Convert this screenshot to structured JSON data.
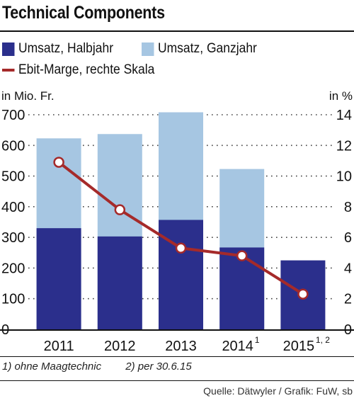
{
  "chart_data": {
    "type": "bar",
    "title": "Technical Components",
    "categories": [
      "2011",
      "2012",
      "2013",
      "2014",
      "2015"
    ],
    "category_superscripts": [
      "",
      "",
      "",
      "1",
      "1, 2"
    ],
    "series": [
      {
        "name": "Umsatz, Halbjahr",
        "type": "bar",
        "axis": "left",
        "color": "#2b2f8c",
        "values": [
          330,
          303,
          357,
          267,
          225
        ]
      },
      {
        "name": "Umsatz, Ganzjahr",
        "type": "bar",
        "axis": "left",
        "color": "#a6c6e2",
        "values": [
          623,
          637,
          708,
          523,
          null
        ]
      },
      {
        "name": "Ebit-Marge, rechte Skala",
        "type": "line",
        "axis": "right",
        "color": "#a52a2a",
        "values": [
          10.9,
          7.8,
          5.3,
          4.8,
          2.3
        ]
      }
    ],
    "left_axis": {
      "label": "in Mio. Fr.",
      "min": 0,
      "max": 700,
      "ticks": [
        "0",
        "100",
        "200",
        "300",
        "400",
        "500",
        "600",
        "700"
      ]
    },
    "right_axis": {
      "label": "in %",
      "min": 0,
      "max": 14,
      "ticks": [
        "0",
        "2",
        "4",
        "6",
        "8",
        "10",
        "12",
        "14"
      ]
    },
    "grid": "dotted-horizontal"
  },
  "footnotes": [
    "1) ohne Maagtechnic",
    "2) per 30.6.15"
  ],
  "source": "Quelle: Dätwyler / Grafik: FuW, sb"
}
